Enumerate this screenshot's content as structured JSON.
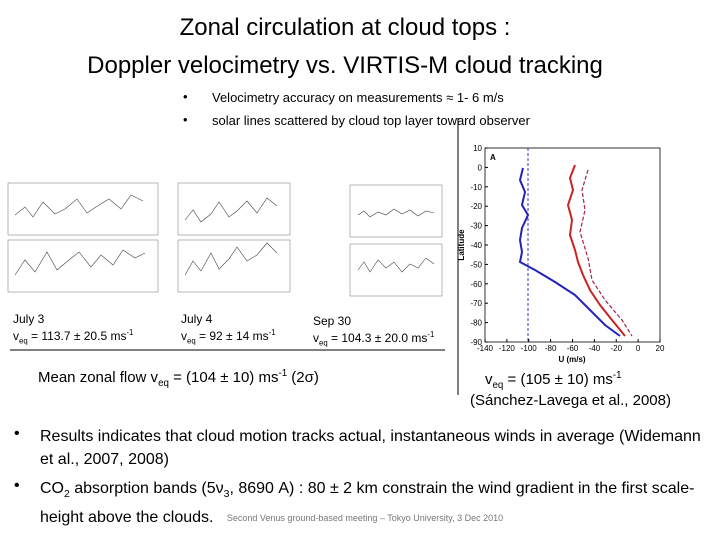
{
  "title": [
    "Zonal circulation at cloud tops :",
    "Doppler velocimetry vs. VIRTIS-M cloud tracking"
  ],
  "top_bullets": [
    "Velocimetry accuracy on measurements ≈ 1- 6 m/s",
    "solar lines scattered by cloud top layer toward observer"
  ],
  "panels": [
    {
      "date": "July 3",
      "velocity": [
        "v",
        {
          "sub": "eq"
        },
        " = 113.7 ± 20.5 ms",
        {
          "sup": "-1"
        }
      ]
    },
    {
      "date": "July 4",
      "velocity": [
        "v",
        {
          "sub": "eq"
        },
        " = 92 ± 14 ms",
        {
          "sup": "-1"
        }
      ]
    },
    {
      "date": "Sep 30",
      "velocity": [
        "v",
        {
          "sub": "eq"
        },
        " = 104.3 ± 20.0 ms",
        {
          "sup": "-1"
        }
      ]
    }
  ],
  "mean": [
    "Mean zonal flow v",
    {
      "sub": "eq"
    },
    " = (104 ± 10) ms",
    {
      "sup": "-1"
    },
    " (2σ)"
  ],
  "figure": {
    "panel": "A",
    "ylabel": "Latitude",
    "xlabel": "U (m/s)",
    "xlim": [
      -140,
      20
    ],
    "xticks": [
      -140,
      -120,
      -100,
      -80,
      -60,
      -40,
      -20,
      0,
      20
    ],
    "ylim": [
      -90,
      10
    ],
    "yticks": [
      10,
      0,
      -10,
      -20,
      -30,
      -40,
      -50,
      -60,
      -70,
      -80,
      -90
    ]
  },
  "figure_result": [
    "v",
    {
      "sub": "eq"
    },
    " = (105 ± 10) ms",
    {
      "sup": "-1"
    }
  ],
  "citation": "(Sánchez-Lavega et al., 2008)",
  "bullets": [
    [
      "Results indicates that cloud motion tracks actual, instantaneous winds in average (Widemann et al., 2007, 2008)"
    ],
    [
      "CO",
      {
        "sub": "2"
      },
      " absorption bands (5ν",
      {
        "sub": "3"
      },
      ", 8690 A) : 80 ± 2 km constrain the wind gradient in the first scale-height above the clouds."
    ]
  ],
  "footer": "Second Venus ground-based meeting – Tokyo University, 3 Dec 2010"
}
